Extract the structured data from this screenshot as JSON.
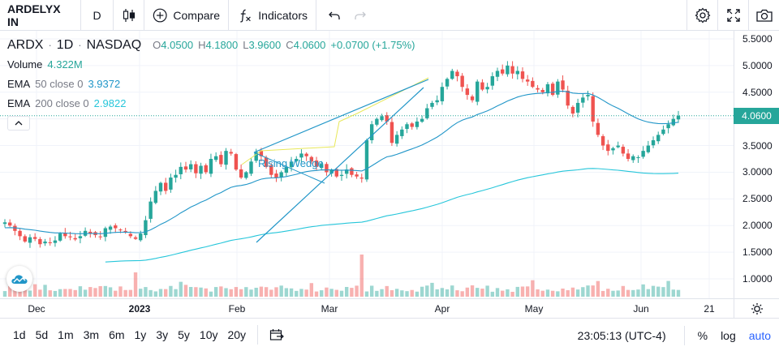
{
  "toolbar": {
    "symbol": "ARDELYX IN",
    "interval": "D",
    "compare_label": "Compare",
    "indicators_label": "Indicators"
  },
  "legend": {
    "symbol": "ARDX",
    "interval": "1D",
    "exchange": "NASDAQ",
    "open_key": "O",
    "open": "4.0500",
    "high_key": "H",
    "high": "4.1800",
    "low_key": "L",
    "low": "3.9600",
    "close_key": "C",
    "close": "4.0600",
    "change": "+0.0700 (+1.75%)",
    "volume_label": "Volume",
    "volume_value": "4.322M",
    "ema50_label": "EMA",
    "ema50_params": "50 close 0",
    "ema50_value": "3.9372",
    "ema200_label": "EMA",
    "ema200_params": "200 close 0",
    "ema200_value": "2.9822"
  },
  "price_axis": {
    "labels": [
      "5.5000",
      "5.0000",
      "4.5000",
      "4.0000",
      "3.5000",
      "3.0000",
      "2.5000",
      "2.0000",
      "1.5000",
      "1.0000"
    ],
    "current": "4.0600"
  },
  "time_axis": {
    "labels": [
      {
        "text": "Dec",
        "bold": false
      },
      {
        "text": "2023",
        "bold": true
      },
      {
        "text": "Feb",
        "bold": false
      },
      {
        "text": "Mar",
        "bold": false
      },
      {
        "text": "Apr",
        "bold": false
      },
      {
        "text": "May",
        "bold": false
      },
      {
        "text": "Jun",
        "bold": false
      },
      {
        "text": "21",
        "bold": false
      }
    ]
  },
  "drawing": {
    "pattern_label": "Rising Wedge"
  },
  "bottom_bar": {
    "ranges": [
      "1d",
      "5d",
      "1m",
      "3m",
      "6m",
      "1y",
      "3y",
      "5y",
      "10y",
      "20y"
    ],
    "clock": "23:05:13 (UTC-4)",
    "percent_label": "%",
    "log_label": "log",
    "auto_label": "auto"
  },
  "colors": {
    "up": "#26a69a",
    "down": "#ef5350",
    "ema50": "#2196c8",
    "ema200": "#26c6da",
    "wedge_yellow": "#e8e85a"
  },
  "chart_data": {
    "type": "candlestick",
    "title": "",
    "price_range": [
      0.7,
      5.55
    ],
    "last_price": 4.06,
    "candles_close": [
      2.06,
      2.0,
      1.9,
      1.8,
      1.7,
      1.78,
      1.75,
      1.65,
      1.7,
      1.68,
      1.72,
      1.85,
      1.8,
      1.78,
      1.74,
      1.8,
      1.9,
      1.85,
      1.82,
      1.79,
      1.95,
      1.98,
      1.95,
      1.92,
      1.87,
      1.8,
      1.75,
      1.85,
      2.1,
      2.45,
      2.65,
      2.8,
      2.65,
      2.9,
      2.95,
      3.1,
      3.05,
      3.15,
      2.98,
      3.12,
      3.0,
      3.25,
      3.3,
      3.15,
      3.4,
      3.35,
      3.05,
      2.9,
      3.0,
      3.2,
      3.38,
      3.3,
      3.1,
      2.95,
      2.9,
      3.0,
      3.1,
      3.2,
      3.25,
      3.35,
      3.3,
      3.2,
      3.1,
      3.15,
      3.0,
      3.05,
      2.92,
      2.95,
      3.05,
      2.95,
      2.92,
      2.88,
      3.6,
      3.9,
      4.0,
      4.05,
      3.95,
      3.55,
      3.7,
      3.8,
      3.9,
      3.85,
      3.95,
      4.0,
      4.2,
      4.3,
      4.35,
      4.6,
      4.75,
      4.9,
      4.8,
      4.6,
      4.45,
      4.35,
      4.7,
      4.55,
      4.6,
      4.8,
      4.9,
      4.85,
      5.0,
      4.85,
      4.9,
      4.75,
      4.7,
      4.6,
      4.55,
      4.5,
      4.65,
      4.45,
      4.7,
      4.55,
      4.25,
      4.1,
      4.3,
      4.4,
      4.45,
      3.95,
      3.7,
      3.5,
      3.4,
      3.45,
      3.5,
      3.35,
      3.25,
      3.3,
      3.28,
      3.4,
      3.5,
      3.6,
      3.7,
      3.8,
      3.9,
      4.0,
      4.06
    ],
    "ema50_range_note": "",
    "series": [
      {
        "name": "EMA 50",
        "last": 3.9372
      },
      {
        "name": "EMA 200",
        "last": 2.9822
      }
    ]
  }
}
